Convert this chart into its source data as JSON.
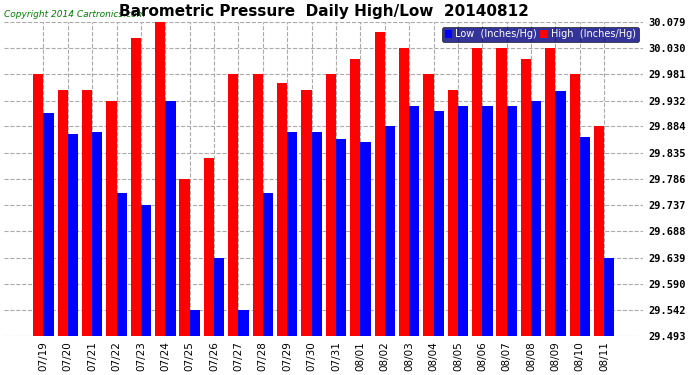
{
  "title": "Barometric Pressure  Daily High/Low  20140812",
  "copyright": "Copyright 2014 Cartronics.com",
  "legend_low": "Low  (Inches/Hg)",
  "legend_high": "High  (Inches/Hg)",
  "dates": [
    "07/19",
    "07/20",
    "07/21",
    "07/22",
    "07/23",
    "07/24",
    "07/25",
    "07/26",
    "07/27",
    "07/28",
    "07/29",
    "07/30",
    "07/31",
    "08/01",
    "08/02",
    "08/03",
    "08/04",
    "08/05",
    "08/06",
    "08/07",
    "08/08",
    "08/09",
    "08/10",
    "08/11"
  ],
  "low": [
    29.908,
    29.869,
    29.874,
    29.76,
    29.737,
    29.932,
    29.542,
    29.639,
    29.542,
    29.76,
    29.874,
    29.874,
    29.86,
    29.855,
    29.884,
    29.922,
    29.912,
    29.922,
    29.922,
    29.922,
    29.932,
    29.95,
    29.865,
    29.639
  ],
  "high": [
    29.981,
    29.952,
    29.952,
    29.932,
    30.049,
    30.079,
    29.786,
    29.825,
    29.981,
    29.981,
    29.964,
    29.952,
    29.981,
    30.01,
    30.059,
    30.03,
    29.981,
    29.952,
    30.03,
    30.03,
    30.01,
    30.03,
    29.981,
    29.884
  ],
  "ymin": 29.493,
  "ymax": 30.079,
  "yticks": [
    29.493,
    29.542,
    29.59,
    29.639,
    29.688,
    29.737,
    29.786,
    29.835,
    29.884,
    29.932,
    29.981,
    30.03,
    30.079
  ],
  "bar_color_low": "#0000ff",
  "bar_color_high": "#ff0000",
  "background_color": "#ffffff",
  "title_fontsize": 11,
  "tick_fontsize": 7.5
}
